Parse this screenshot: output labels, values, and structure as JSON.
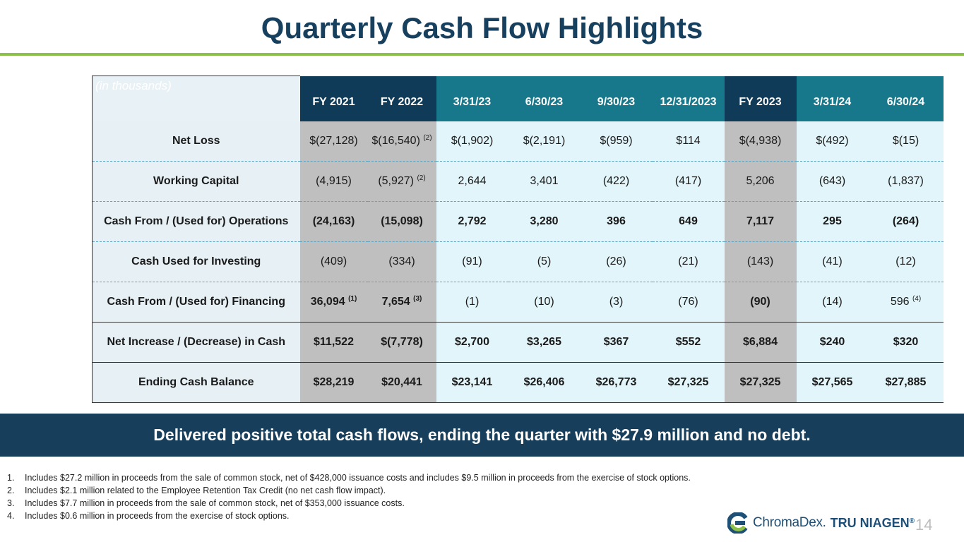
{
  "slide": {
    "title": "Quarterly Cash Flow Highlights",
    "page_number": "14",
    "banner": "Delivered positive total cash flows, ending the quarter with $27.9 million and no debt."
  },
  "table": {
    "units_label": "(in thousands)",
    "columns": [
      "FY 2021",
      "FY 2022",
      "3/31/23",
      "6/30/23",
      "9/30/23",
      "12/31/2023",
      "FY 2023",
      "3/31/24",
      "6/30/24"
    ],
    "column_kinds": [
      "fy",
      "fy",
      "q",
      "q",
      "q",
      "q",
      "fy",
      "q",
      "q"
    ],
    "rows": [
      {
        "label": "Net Loss",
        "cells": [
          {
            "v": "$(27,128)"
          },
          {
            "v": "$(16,540) ",
            "sup": "(2)"
          },
          {
            "v": "$(1,902)"
          },
          {
            "v": "$(2,191)"
          },
          {
            "v": "$(959)"
          },
          {
            "v": "$114"
          },
          {
            "v": "$(4,938)"
          },
          {
            "v": "$(492)"
          },
          {
            "v": "$(15)"
          }
        ]
      },
      {
        "label": "Working Capital",
        "cells": [
          {
            "v": "(4,915)"
          },
          {
            "v": "(5,927) ",
            "sup": "(2)"
          },
          {
            "v": "2,644"
          },
          {
            "v": "3,401"
          },
          {
            "v": "(422)"
          },
          {
            "v": "(417)"
          },
          {
            "v": "5,206"
          },
          {
            "v": "(643)"
          },
          {
            "v": "(1,837)"
          }
        ]
      },
      {
        "label": "Cash From / (Used for) Operations",
        "cells": [
          {
            "v": "(24,163)"
          },
          {
            "v": "(15,098)"
          },
          {
            "v": "2,792"
          },
          {
            "v": "3,280"
          },
          {
            "v": "396"
          },
          {
            "v": "649"
          },
          {
            "v": "7,117"
          },
          {
            "v": "295"
          },
          {
            "v": "(264)"
          }
        ]
      },
      {
        "label": "Cash Used for Investing",
        "cells": [
          {
            "v": "(409)"
          },
          {
            "v": "(334)"
          },
          {
            "v": "(91)"
          },
          {
            "v": "(5)"
          },
          {
            "v": "(26)"
          },
          {
            "v": "(21)"
          },
          {
            "v": "(143)"
          },
          {
            "v": "(41)"
          },
          {
            "v": "(12)"
          }
        ]
      },
      {
        "label": "Cash From / (Used for) Financing",
        "cells": [
          {
            "v": "36,094 ",
            "sup": "(1)"
          },
          {
            "v": "7,654 ",
            "sup": "(3)"
          },
          {
            "v": "(1)"
          },
          {
            "v": "(10)"
          },
          {
            "v": "(3)"
          },
          {
            "v": "(76)"
          },
          {
            "v": "(90)"
          },
          {
            "v": "(14)"
          },
          {
            "v": "596 ",
            "sup": "(4)"
          }
        ]
      },
      {
        "label": "Net Increase / (Decrease) in Cash",
        "cells": [
          {
            "v": "$11,522"
          },
          {
            "v": "$(7,778)"
          },
          {
            "v": "$2,700"
          },
          {
            "v": "$3,265"
          },
          {
            "v": "$367"
          },
          {
            "v": "$552"
          },
          {
            "v": "$6,884"
          },
          {
            "v": "$240"
          },
          {
            "v": "$320"
          }
        ]
      },
      {
        "label": "Ending Cash Balance",
        "cells": [
          {
            "v": "$28,219"
          },
          {
            "v": "$20,441"
          },
          {
            "v": "$23,141"
          },
          {
            "v": "$26,406"
          },
          {
            "v": "$26,773"
          },
          {
            "v": "$27,325"
          },
          {
            "v": "$27,325"
          },
          {
            "v": "$27,565"
          },
          {
            "v": "$27,885"
          }
        ]
      }
    ]
  },
  "footnotes": [
    {
      "num": "1.",
      "text": "Includes $27.2 million in proceeds from the sale of common stock, net of $428,000 issuance costs and includes $9.5 million in proceeds from the exercise of stock options."
    },
    {
      "num": "2.",
      "text": "Includes $2.1 million related to the Employee Retention Tax Credit (no net cash flow impact)."
    },
    {
      "num": "3.",
      "text": "Includes $7.7 million in proceeds from the sale of common stock, net of $353,000 issuance costs."
    },
    {
      "num": "4.",
      "text": "Includes $0.6 million in proceeds from the exercise of stock options."
    }
  ],
  "logo": {
    "chromadex": "ChromaDex.",
    "tru_niagen": "TRU NIAGEN",
    "reg_mark": "®",
    "colors": {
      "c_mark_top": "#1d4f77",
      "c_mark_bottom": "#8dbf4b",
      "text": "#1d4f77"
    }
  },
  "colors": {
    "title": "#17405f",
    "rule": "#8dbf4b",
    "banner": "#173f5c",
    "header_fy": "#0f3a58",
    "header_q": "#16788a",
    "cell_fy": "#bfbfbf",
    "cell_q": "#e2f5fa"
  }
}
